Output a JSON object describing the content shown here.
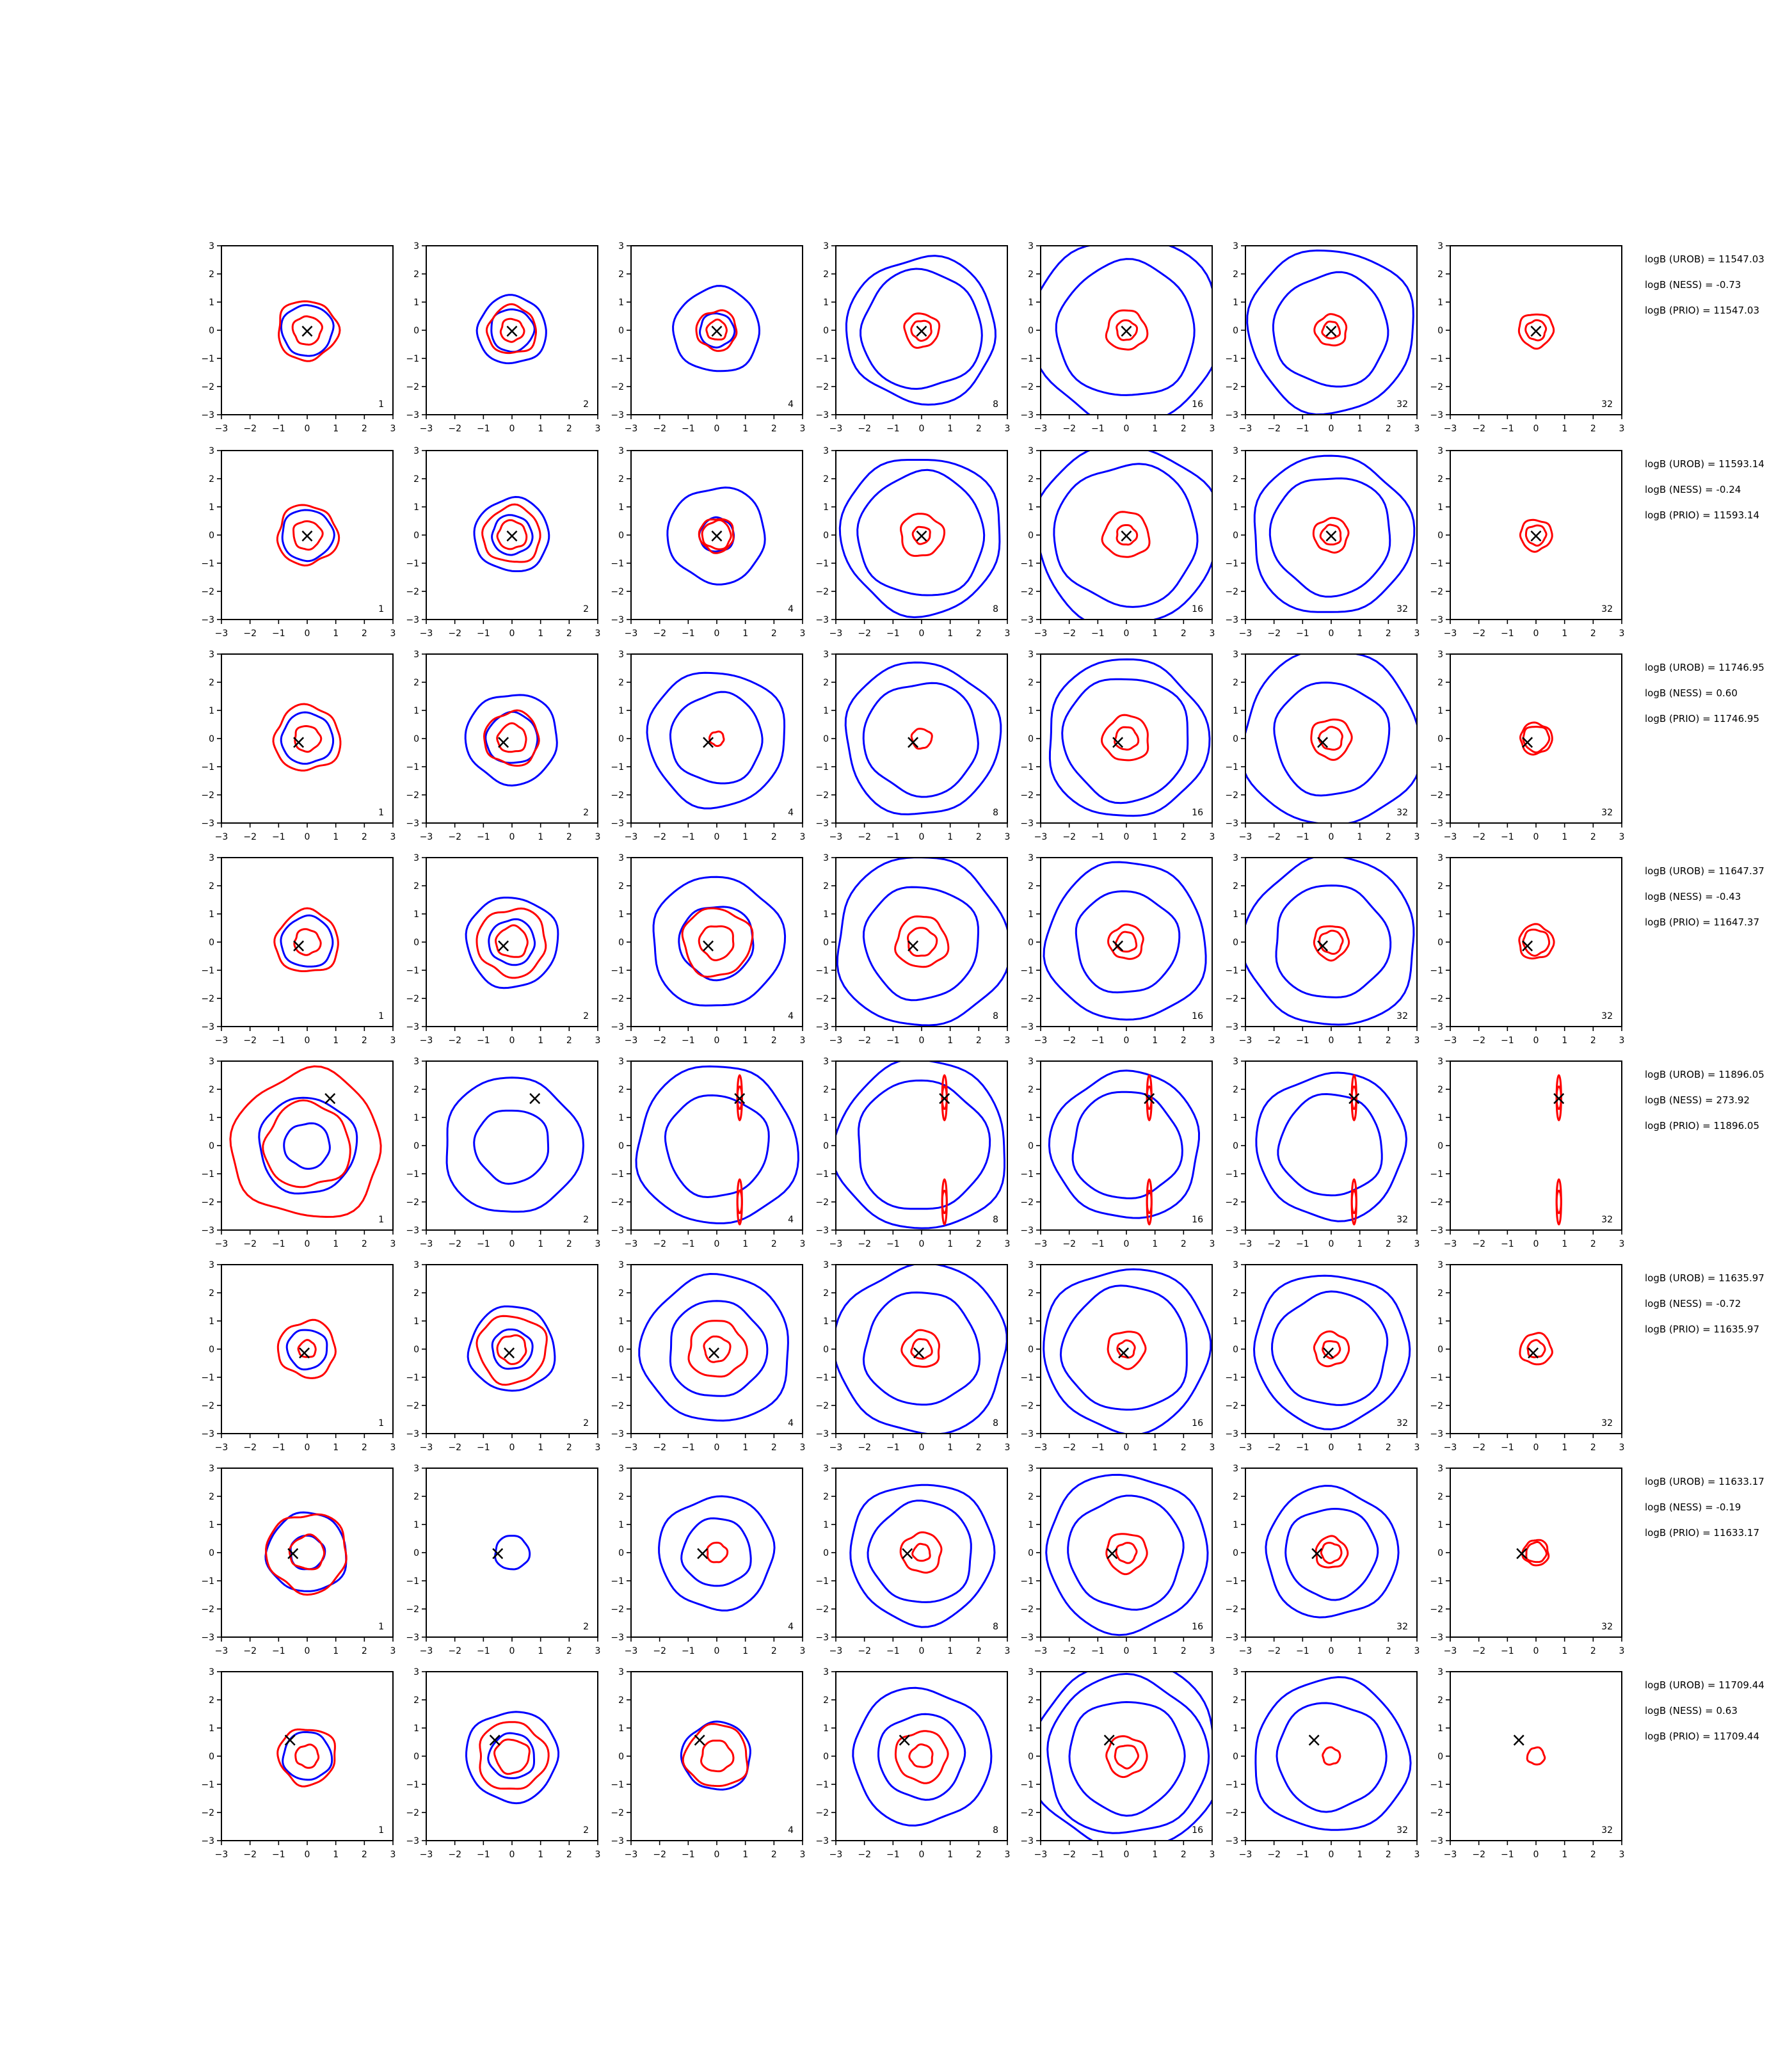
{
  "chart_data": {
    "type": "contour-grid",
    "rows": 8,
    "columns": 7,
    "xlim": [
      -3,
      3
    ],
    "ylim": [
      -3,
      3
    ],
    "ticks": [
      "−3",
      "−2",
      "−1",
      "0",
      "1",
      "2",
      "3"
    ],
    "tick_values": [
      -3,
      -2,
      -1,
      0,
      1,
      2,
      3
    ],
    "column_labels": [
      "1",
      "2",
      "4",
      "8",
      "16",
      "32",
      "32"
    ],
    "colors": {
      "outer_contours": "#0000ff",
      "inner_contours": "#ff0000",
      "marker": "#000000"
    },
    "marker": "×",
    "panel_rows": [
      {
        "row": 1,
        "marker": [
          0,
          0
        ],
        "stats": [
          "logB (UROB) = 11547.03",
          "logB (NESS) = -0.73",
          "logB (PRIO) = 11547.03"
        ],
        "blue_radii": [
          [
            0.9
          ],
          [
            0.75,
            1.2
          ],
          [
            0.6,
            1.5
          ],
          [
            2.1,
            2.6
          ],
          [
            2.4,
            3.3
          ],
          [
            2.0,
            2.9
          ],
          []
        ],
        "red_radii": [
          [
            0.5,
            1.05
          ],
          [
            0.4,
            0.85
          ],
          [
            0.35,
            0.7
          ],
          [
            0.35,
            0.6
          ],
          [
            0.35,
            0.7
          ],
          [
            0.3,
            0.55
          ],
          [
            0.35,
            0.6
          ]
        ]
      },
      {
        "row": 2,
        "marker": [
          0,
          0
        ],
        "stats": [
          "logB (UROB) = 11593.14",
          "logB (NESS) = -0.24",
          "logB (PRIO) = 11593.14"
        ],
        "blue_radii": [
          [
            0.9
          ],
          [
            0.7,
            1.3
          ],
          [
            0.6,
            1.7
          ],
          [
            2.2,
            2.8
          ],
          [
            2.5,
            3.2
          ],
          [
            2.1,
            2.8
          ],
          []
        ],
        "red_radii": [
          [
            0.5,
            1.05
          ],
          [
            0.5,
            1.0
          ],
          [
            0.5,
            0.6
          ],
          [
            0.3,
            0.75
          ],
          [
            0.35,
            0.8
          ],
          [
            0.35,
            0.6
          ],
          [
            0.35,
            0.55
          ]
        ]
      },
      {
        "row": 3,
        "marker": [
          -0.3,
          -0.1
        ],
        "stats": [
          "logB (UROB) = 11746.95",
          "logB (NESS) = 0.60",
          "logB (PRIO) = 11746.95"
        ],
        "blue_radii": [
          [
            0.9
          ],
          [
            0.9,
            1.6
          ],
          [
            1.6,
            2.4
          ],
          [
            2.0,
            2.7
          ],
          [
            2.2,
            2.8
          ],
          [
            2.0,
            3.1
          ],
          []
        ],
        "red_radii": [
          [
            0.45,
            1.15
          ],
          [
            0.5,
            0.95
          ],
          [
            0.25
          ],
          [
            0.35
          ],
          [
            0.4,
            0.8
          ],
          [
            0.4,
            0.7
          ],
          [
            0.45,
            0.55
          ]
        ]
      },
      {
        "row": 4,
        "marker": [
          -0.3,
          -0.1
        ],
        "stats": [
          "logB (UROB) = 11647.37",
          "logB (NESS) = -0.43",
          "logB (PRIO) = 11647.37"
        ],
        "blue_radii": [
          [
            0.9
          ],
          [
            0.8,
            1.6
          ],
          [
            1.3,
            2.3
          ],
          [
            2.0,
            3.0
          ],
          [
            1.8,
            2.8
          ],
          [
            2.0,
            3.0
          ],
          []
        ],
        "red_radii": [
          [
            0.45,
            1.1
          ],
          [
            0.55,
            1.2
          ],
          [
            0.6,
            1.2
          ],
          [
            0.5,
            0.9
          ],
          [
            0.35,
            0.6
          ],
          [
            0.4,
            0.6
          ],
          [
            0.45,
            0.6
          ]
        ]
      },
      {
        "row": 5,
        "marker": [
          0.8,
          1.7
        ],
        "stats": [
          "logB (UROB) = 11896.05",
          "logB (NESS) = 273.92",
          "logB (PRIO) = 11896.05"
        ],
        "blue_radii": [
          [
            0.8,
            1.7
          ],
          [
            1.3,
            2.4
          ],
          [
            1.8,
            2.8
          ],
          [
            2.3,
            3.0
          ],
          [
            1.9,
            2.6
          ],
          [
            1.8,
            2.6
          ],
          []
        ],
        "red_radii": [
          [
            1.5,
            2.6
          ],
          [],
          [],
          [],
          [],
          [],
          []
        ]
      },
      {
        "row": 6,
        "marker": [
          -0.1,
          -0.1
        ],
        "stats": [
          "logB (UROB) = 11635.97",
          "logB (NESS) = -0.72",
          "logB (PRIO) = 11635.97"
        ],
        "blue_radii": [
          [
            0.7
          ],
          [
            0.7,
            1.5
          ],
          [
            1.7,
            2.6
          ],
          [
            2.0,
            3.0
          ],
          [
            2.2,
            2.9
          ],
          [
            2.0,
            2.7
          ],
          []
        ],
        "red_radii": [
          [
            0.3,
            1.0
          ],
          [
            0.5,
            1.2
          ],
          [
            0.45,
            1.0
          ],
          [
            0.35,
            0.65
          ],
          [
            0.3,
            0.65
          ],
          [
            0.3,
            0.6
          ],
          [
            0.3,
            0.55
          ]
        ]
      },
      {
        "row": 7,
        "marker": [
          -0.5,
          0.0
        ],
        "stats": [
          "logB (UROB) = 11633.17",
          "logB (NESS) = -0.19",
          "logB (PRIO) = 11633.17"
        ],
        "blue_radii": [
          [
            0.6,
            1.4
          ],
          [
            0.6
          ],
          [
            1.2,
            2.0
          ],
          [
            1.8,
            2.5
          ],
          [
            2.0,
            2.8
          ],
          [
            1.6,
            2.3
          ],
          []
        ],
        "red_radii": [
          [
            0.6,
            1.4
          ],
          [],
          [
            0.35
          ],
          [
            0.3,
            0.7
          ],
          [
            0.35,
            0.7
          ],
          [
            0.35,
            0.55
          ],
          [
            0.35,
            0.45
          ]
        ]
      },
      {
        "row": 8,
        "marker": [
          -0.6,
          0.6
        ],
        "stats": [
          "logB (UROB) = 11709.44",
          "logB (NESS) = 0.63",
          "logB (PRIO) = 11709.44"
        ],
        "blue_radii": [
          [
            0.85
          ],
          [
            0.8,
            1.6
          ],
          [
            1.2
          ],
          [
            1.5,
            2.4
          ],
          [
            2.0,
            2.8,
            3.3
          ],
          [
            1.9,
            2.7
          ],
          []
        ],
        "red_radii": [
          [
            0.4,
            1.0
          ],
          [
            0.6,
            1.2
          ],
          [
            0.55,
            1.1
          ],
          [
            0.4,
            0.9
          ],
          [
            0.4,
            0.7
          ],
          [
            0.3
          ],
          [
            0.3
          ]
        ]
      }
    ]
  }
}
